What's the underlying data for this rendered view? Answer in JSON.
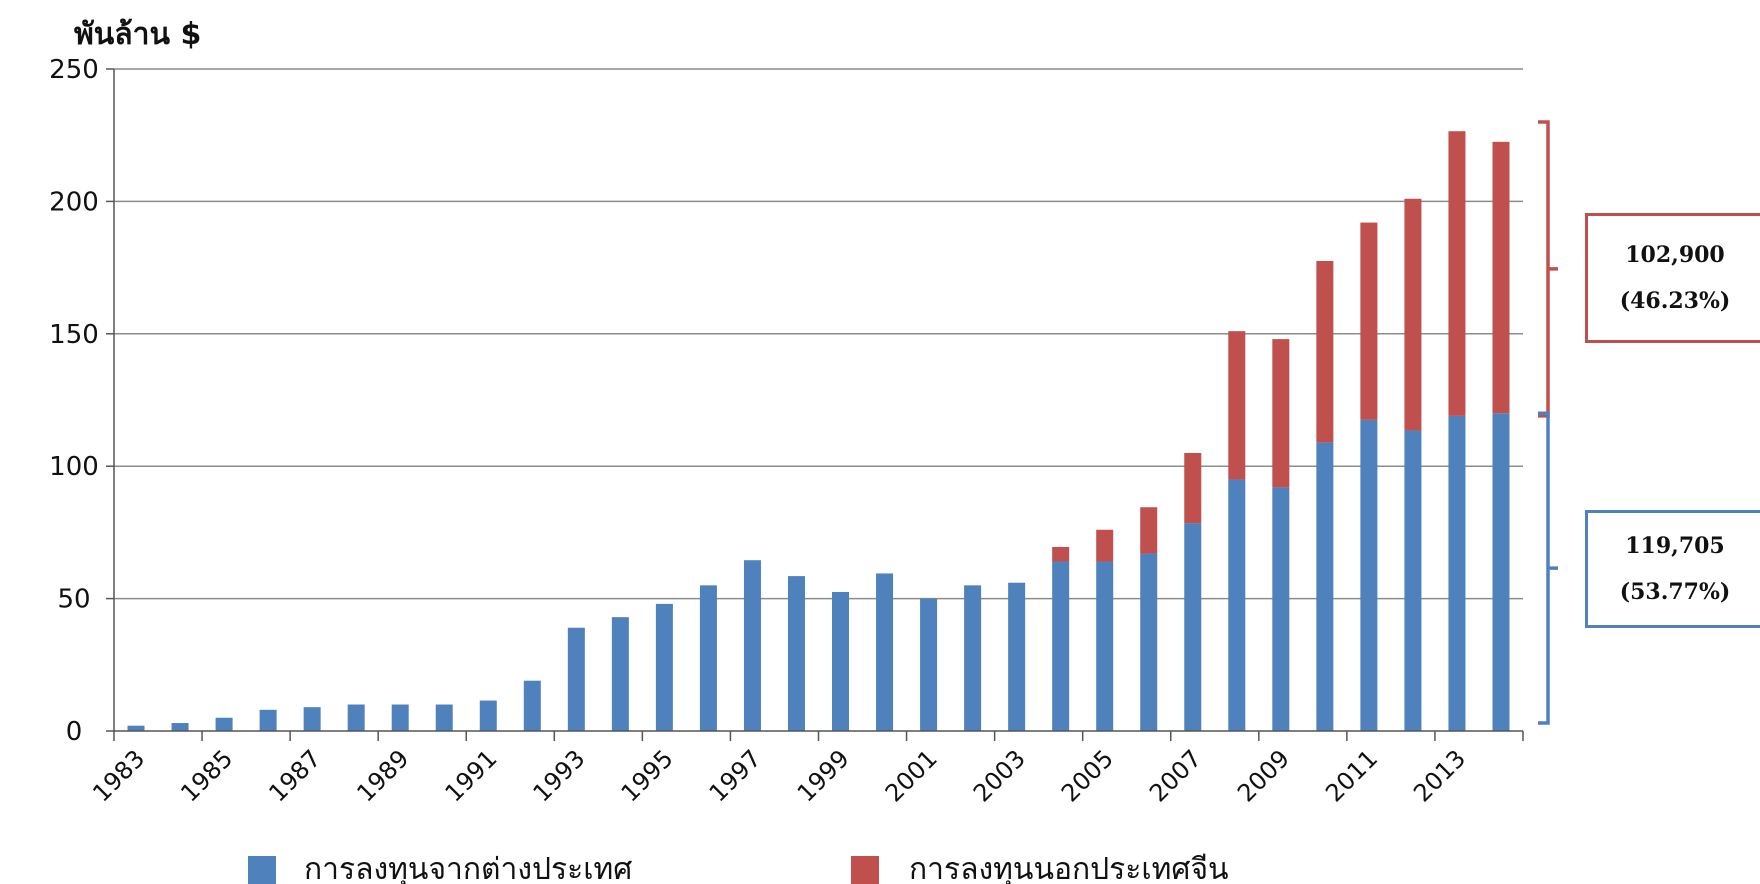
{
  "chart_data": {
    "type": "bar",
    "stacked": true,
    "title": "",
    "ylabel": "พันล้าน $",
    "xlabel": "",
    "ylim": [
      0,
      250
    ],
    "yticks": [
      "0",
      "50",
      "100",
      "150",
      "200",
      "250"
    ],
    "grid": true,
    "legend_position": "bottom",
    "categories": [
      "1983",
      "1984",
      "1985",
      "1986",
      "1987",
      "1988",
      "1989",
      "1990",
      "1991",
      "1992",
      "1993",
      "1994",
      "1995",
      "1996",
      "1997",
      "1998",
      "1999",
      "2000",
      "2001",
      "2002",
      "2003",
      "2004",
      "2005",
      "2006",
      "2007",
      "2008",
      "2009",
      "2010",
      "2011",
      "2012",
      "2013",
      "2014"
    ],
    "xtick_labels": [
      "1983",
      "1985",
      "1987",
      "1989",
      "1991",
      "1993",
      "1995",
      "1997",
      "1999",
      "2001",
      "2003",
      "2005",
      "2007",
      "2009",
      "2011",
      "2013"
    ],
    "series": [
      {
        "name": "การลงทุนจากต่างประเทศ",
        "color": "#4F81BD",
        "values": [
          2,
          3,
          5,
          8,
          9,
          10,
          10,
          10,
          11.5,
          19,
          39,
          43,
          48,
          55,
          64.5,
          58.5,
          52.5,
          59.5,
          50,
          55,
          56,
          64,
          64,
          67,
          78.5,
          95,
          92,
          109,
          117.5,
          113.5,
          119,
          120
        ]
      },
      {
        "name": "การลงทุนนอกประเทศจีน",
        "color": "#C0504D",
        "values": [
          0,
          0,
          0,
          0,
          0,
          0,
          0,
          0,
          0,
          0,
          0,
          0,
          0,
          0,
          0,
          0,
          0,
          0,
          0,
          0,
          0,
          5.5,
          12,
          17.5,
          26.5,
          56,
          56,
          68.5,
          74.5,
          87.5,
          107.5,
          102.5
        ]
      }
    ],
    "annotations": [
      {
        "line1": "102,900",
        "line2": "(46.23%)",
        "color": "#C0504D"
      },
      {
        "line1": "119,705",
        "line2": "(53.77%)",
        "color": "#4F81BD"
      }
    ]
  }
}
